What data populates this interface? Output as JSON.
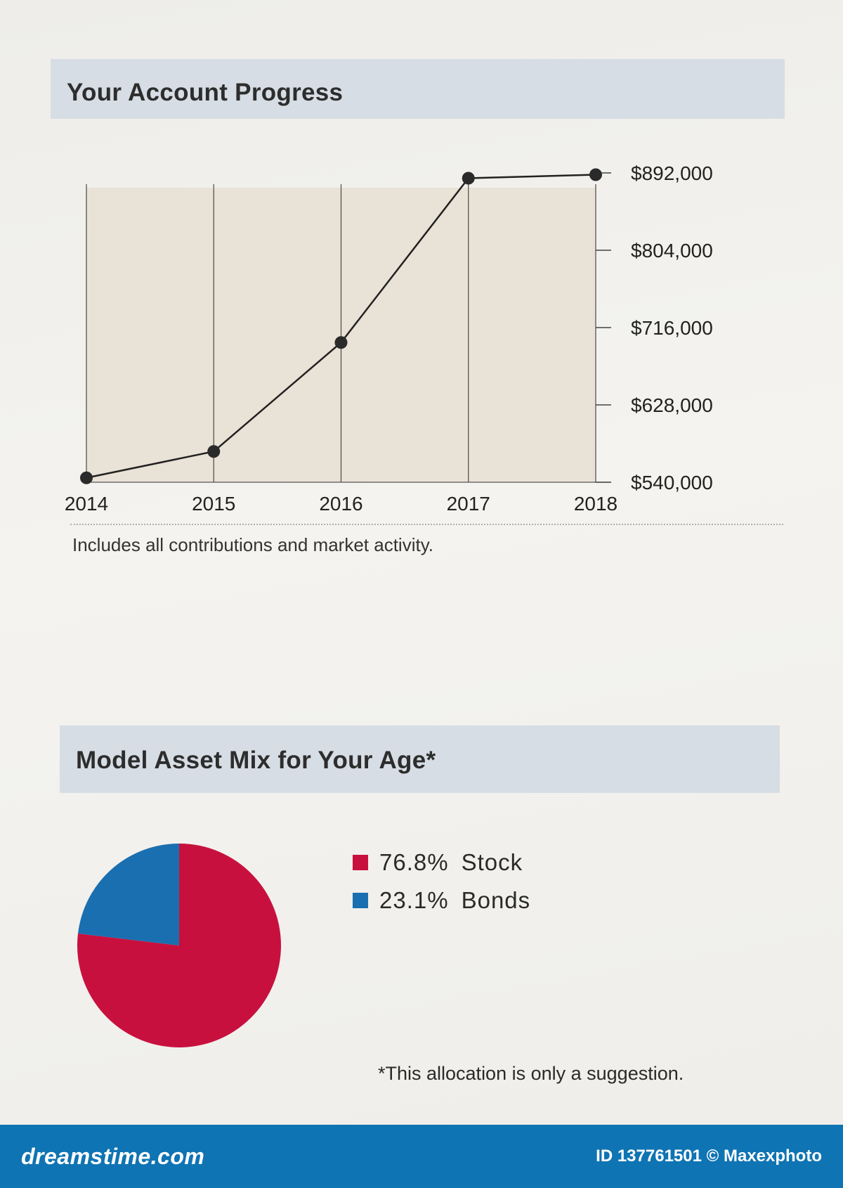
{
  "section1": {
    "title": "Your Account Progress"
  },
  "note": "Includes all contributions and market activity.",
  "section2": {
    "title": "Model Asset Mix for Your Age*"
  },
  "legend": [
    {
      "pct": "76.8%",
      "label": "Stock",
      "color": "#c8103e"
    },
    {
      "pct": "23.1%",
      "label": "Bonds",
      "color": "#1a6fb0"
    }
  ],
  "footnote": "*This allocation is only a suggestion.",
  "watermark": {
    "logo": "dreamstime.com",
    "id": "ID 137761501 © Maxexphoto"
  },
  "chart_data": [
    {
      "type": "line",
      "title": "Your Account Progress",
      "categories": [
        "2014",
        "2015",
        "2016",
        "2017",
        "2018"
      ],
      "series": [
        {
          "values": [
            545000,
            575000,
            699000,
            886000,
            890000
          ]
        }
      ],
      "y_ticks": [
        "$892,000",
        "$804,000",
        "$716,000",
        "$628,000",
        "$540,000"
      ],
      "y_tick_values": [
        892000,
        804000,
        716000,
        628000,
        540000
      ],
      "ylim": [
        540000,
        892000
      ],
      "y_axis_position": "right",
      "grid": "vertical",
      "colors": {
        "line": "#222222",
        "plot_bg": "#e9e2d6"
      }
    },
    {
      "type": "pie",
      "title": "Model Asset Mix for Your Age*",
      "labels": [
        "Stock",
        "Bonds"
      ],
      "values": [
        76.8,
        23.1
      ],
      "colors": [
        "#c8103e",
        "#1a6fb0"
      ]
    }
  ]
}
